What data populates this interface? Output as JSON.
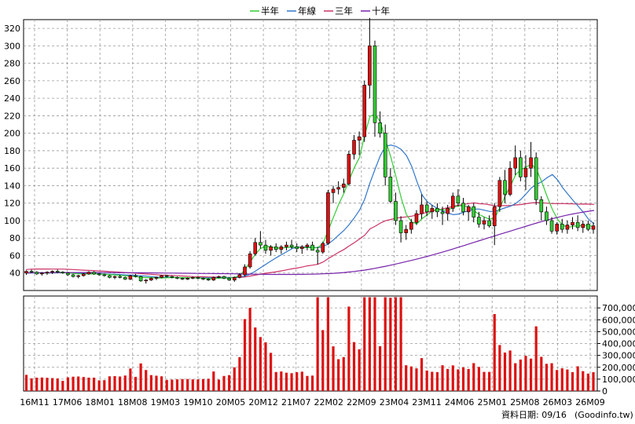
{
  "chart_data": {
    "type": "candlestick",
    "legend": [
      {
        "name": "半年",
        "color": "#33cc33"
      },
      {
        "name": "年線",
        "color": "#3377cc"
      },
      {
        "name": "三年",
        "color": "#cc3366"
      },
      {
        "name": "十年",
        "color": "#7722aa"
      }
    ],
    "price_ylim": [
      20,
      330
    ],
    "price_yticks": [
      40,
      60,
      80,
      100,
      120,
      140,
      160,
      180,
      200,
      220,
      240,
      260,
      280,
      300,
      320
    ],
    "volume_ylim": [
      0,
      800000
    ],
    "volume_yticks": [
      0,
      100000,
      200000,
      300000,
      400000,
      500000,
      600000,
      700000
    ],
    "volume_ytick_labels": [
      "0",
      "100,000",
      "200,000",
      "300,000",
      "400,000",
      "500,000",
      "600,000",
      "700,000"
    ],
    "x_labels": [
      "16M11",
      "17M06",
      "18M01",
      "18M08",
      "19M03",
      "19M10",
      "20M05",
      "20M12",
      "21M07",
      "22M02",
      "22M09",
      "23M04",
      "23M11",
      "24M06",
      "25M01",
      "25M08",
      "26M03",
      "26M09"
    ],
    "candles": [
      [
        40,
        43,
        38,
        42
      ],
      [
        42,
        44,
        40,
        41
      ],
      [
        41,
        42,
        38,
        39
      ],
      [
        39,
        41,
        37,
        40
      ],
      [
        40,
        42,
        38,
        41
      ],
      [
        41,
        43,
        39,
        42
      ],
      [
        42,
        44,
        40,
        41
      ],
      [
        41,
        42,
        39,
        40
      ],
      [
        40,
        41,
        37,
        38
      ],
      [
        38,
        39,
        35,
        36
      ],
      [
        36,
        38,
        34,
        37
      ],
      [
        37,
        40,
        36,
        39
      ],
      [
        39,
        42,
        38,
        41
      ],
      [
        41,
        42,
        38,
        39
      ],
      [
        39,
        40,
        37,
        38
      ],
      [
        38,
        39,
        36,
        37
      ],
      [
        37,
        38,
        34,
        35
      ],
      [
        35,
        37,
        33,
        36
      ],
      [
        36,
        38,
        34,
        35
      ],
      [
        35,
        36,
        32,
        33
      ],
      [
        33,
        38,
        32,
        37
      ],
      [
        37,
        39,
        35,
        36
      ],
      [
        36,
        37,
        30,
        31
      ],
      [
        31,
        33,
        28,
        32
      ],
      [
        32,
        35,
        31,
        34
      ],
      [
        34,
        36,
        32,
        35
      ],
      [
        35,
        38,
        34,
        37
      ],
      [
        37,
        38,
        35,
        36
      ],
      [
        36,
        37,
        34,
        35
      ],
      [
        35,
        36,
        33,
        34
      ],
      [
        34,
        35,
        32,
        33
      ],
      [
        33,
        35,
        32,
        34
      ],
      [
        34,
        36,
        33,
        35
      ],
      [
        35,
        36,
        33,
        34
      ],
      [
        34,
        35,
        32,
        33
      ],
      [
        33,
        34,
        31,
        32
      ],
      [
        32,
        36,
        31,
        35
      ],
      [
        35,
        37,
        34,
        36
      ],
      [
        36,
        37,
        33,
        34
      ],
      [
        34,
        35,
        31,
        32
      ],
      [
        32,
        36,
        30,
        35
      ],
      [
        35,
        40,
        34,
        38
      ],
      [
        38,
        50,
        36,
        47
      ],
      [
        47,
        65,
        45,
        62
      ],
      [
        62,
        80,
        60,
        75
      ],
      [
        75,
        88,
        68,
        72
      ],
      [
        72,
        78,
        62,
        66
      ],
      [
        66,
        72,
        60,
        70
      ],
      [
        70,
        74,
        64,
        67
      ],
      [
        67,
        72,
        62,
        70
      ],
      [
        70,
        76,
        66,
        72
      ],
      [
        72,
        78,
        68,
        70
      ],
      [
        70,
        74,
        64,
        68
      ],
      [
        68,
        72,
        62,
        70
      ],
      [
        70,
        74,
        66,
        72
      ],
      [
        72,
        76,
        68,
        66
      ],
      [
        66,
        70,
        50,
        64
      ],
      [
        64,
        76,
        62,
        74
      ],
      [
        74,
        135,
        72,
        132
      ],
      [
        132,
        140,
        120,
        136
      ],
      [
        136,
        145,
        130,
        138
      ],
      [
        138,
        148,
        132,
        142
      ],
      [
        142,
        180,
        140,
        176
      ],
      [
        176,
        198,
        170,
        192
      ],
      [
        192,
        202,
        175,
        196
      ],
      [
        196,
        260,
        190,
        255
      ],
      [
        255,
        332,
        240,
        300
      ],
      [
        300,
        306,
        196,
        212
      ],
      [
        212,
        225,
        195,
        200
      ],
      [
        200,
        210,
        140,
        150
      ],
      [
        150,
        160,
        120,
        122
      ],
      [
        122,
        132,
        95,
        100
      ],
      [
        100,
        105,
        75,
        86
      ],
      [
        86,
        95,
        78,
        90
      ],
      [
        90,
        102,
        85,
        98
      ],
      [
        98,
        112,
        95,
        108
      ],
      [
        108,
        130,
        102,
        118
      ],
      [
        118,
        122,
        105,
        110
      ],
      [
        110,
        118,
        102,
        114
      ],
      [
        114,
        120,
        104,
        110
      ],
      [
        110,
        116,
        95,
        108
      ],
      [
        108,
        118,
        100,
        114
      ],
      [
        114,
        132,
        110,
        128
      ],
      [
        128,
        136,
        116,
        120
      ],
      [
        120,
        126,
        106,
        110
      ],
      [
        110,
        118,
        100,
        116
      ],
      [
        116,
        120,
        98,
        104
      ],
      [
        104,
        110,
        92,
        96
      ],
      [
        96,
        104,
        90,
        100
      ],
      [
        100,
        106,
        92,
        94
      ],
      [
        94,
        120,
        72,
        116
      ],
      [
        116,
        150,
        110,
        146
      ],
      [
        146,
        158,
        120,
        130
      ],
      [
        130,
        168,
        128,
        160
      ],
      [
        160,
        186,
        152,
        172
      ],
      [
        172,
        180,
        145,
        150
      ],
      [
        150,
        175,
        135,
        160
      ],
      [
        160,
        190,
        150,
        172
      ],
      [
        172,
        178,
        118,
        124
      ],
      [
        124,
        128,
        100,
        110
      ],
      [
        110,
        116,
        95,
        100
      ],
      [
        100,
        104,
        85,
        88
      ],
      [
        88,
        98,
        84,
        96
      ],
      [
        96,
        102,
        86,
        90
      ],
      [
        90,
        100,
        85,
        95
      ],
      [
        95,
        104,
        90,
        98
      ],
      [
        98,
        106,
        88,
        92
      ],
      [
        92,
        100,
        86,
        96
      ],
      [
        96,
        100,
        88,
        90
      ],
      [
        90,
        98,
        85,
        94
      ]
    ],
    "ma_half": [
      40,
      40.3,
      40.4,
      40.1,
      40,
      40.3,
      40.7,
      40.8,
      40.4,
      39.6,
      39.1,
      38.9,
      39,
      39,
      38.9,
      38.7,
      38.2,
      37.9,
      37.4,
      36.9,
      36.3,
      36,
      35.1,
      34.7,
      34.8,
      34.4,
      34.4,
      34.6,
      34.8,
      34.9,
      34.7,
      34.7,
      34.6,
      34.3,
      33.9,
      33.6,
      33.7,
      34.1,
      34.3,
      34.3,
      35,
      37.1,
      43.6,
      52.9,
      61.4,
      68.2,
      70.4,
      70.2,
      68.6,
      68.5,
      69.3,
      69.6,
      69.5,
      69,
      69.3,
      68.8,
      69,
      74.3,
      89.1,
      103.8,
      118.8,
      131.2,
      146.2,
      160.8,
      172.4,
      198.2,
      219.3,
      221.9,
      212.8,
      192.2,
      172.7,
      150.2,
      125.6,
      106.8,
      98.4,
      96.4,
      102.3,
      106.7,
      111.3,
      113.4,
      112.1,
      112.1,
      115.4,
      116.8,
      116.8,
      115.8,
      111.2,
      106.7,
      103.9,
      101.5,
      104,
      115.8,
      128.9,
      140.4,
      153.1,
      158.4,
      161.4,
      164.8,
      157.7,
      143.5,
      127.3,
      112.7,
      101.3,
      94.7,
      92.3,
      93.5,
      94.3,
      94.3,
      94.1,
      93.4
    ],
    "ma_year": [
      40,
      40.1,
      40.2,
      40.2,
      40.1,
      40.1,
      40.2,
      40.3,
      40.3,
      40,
      39.9,
      39.9,
      39.7,
      39.6,
      39.2,
      38.9,
      38.6,
      38.5,
      38.2,
      37.9,
      37.6,
      37.4,
      36.9,
      36.5,
      36,
      35.5,
      35.3,
      35.2,
      34.9,
      34.8,
      34.5,
      34.4,
      34.6,
      34.6,
      34.5,
      34.5,
      34.7,
      34.8,
      34.9,
      34.8,
      35,
      35.5,
      36.6,
      38.6,
      42.1,
      46.1,
      49.9,
      53.8,
      57.5,
      60.9,
      64.4,
      67.8,
      69.9,
      69.9,
      69.8,
      69.5,
      69,
      70.2,
      73.5,
      77.9,
      83.5,
      88.7,
      95.4,
      103.3,
      112,
      124.7,
      143.3,
      159.3,
      174.5,
      185.1,
      186.4,
      185,
      181.4,
      174.5,
      162.3,
      144.7,
      129.3,
      121.5,
      117.2,
      113.8,
      110.8,
      108.5,
      106.8,
      107.5,
      109.7,
      111.4,
      113.3,
      113.2,
      111.8,
      110.5,
      110.4,
      112.7,
      114.8,
      116.7,
      119.7,
      124.5,
      131,
      137.7,
      141.4,
      144.7,
      149.3,
      152.7,
      146.4,
      137.3,
      130.1,
      122.8,
      116.1,
      109.2,
      100.9,
      96.5
    ],
    "ma_3y": [
      44,
      44.4,
      44.6,
      44.6,
      44.6,
      44.5,
      44.5,
      44.5,
      44.3,
      44,
      43.6,
      43.3,
      43,
      42.8,
      42.4,
      42.1,
      41.7,
      41.4,
      41,
      40.6,
      40.2,
      39.9,
      39.4,
      38.9,
      38.5,
      38.1,
      37.6,
      37.4,
      37.2,
      36.9,
      36.6,
      36.3,
      36,
      35.9,
      35.7,
      35.5,
      35.4,
      35.3,
      35.2,
      35,
      35,
      35.1,
      35.5,
      36.5,
      37.6,
      38.7,
      39.8,
      40.6,
      41.5,
      42.5,
      43.6,
      44.8,
      45.7,
      46.9,
      48.2,
      49,
      50,
      52.6,
      56.6,
      60.1,
      63.8,
      66.9,
      71,
      74.8,
      78.9,
      83.3,
      90.5,
      93.6,
      97.2,
      99.9,
      101.3,
      102.8,
      103.7,
      104.3,
      105.1,
      106.4,
      108,
      109.6,
      111.1,
      112.3,
      113.6,
      114.8,
      116.5,
      117.7,
      118.6,
      119.6,
      120.3,
      119.4,
      119,
      118,
      116.9,
      117.1,
      117.1,
      117.4,
      117.9,
      118.4,
      119.4,
      120.3,
      120.6,
      120.4,
      119.9,
      119.5,
      119.6,
      119.5,
      119.3,
      119.1,
      118.8,
      118.9,
      118.8,
      118.6
    ]
  },
  "footer_label": "資料日期: 09/16",
  "footer_site": "(Goodinfo.tw)"
}
